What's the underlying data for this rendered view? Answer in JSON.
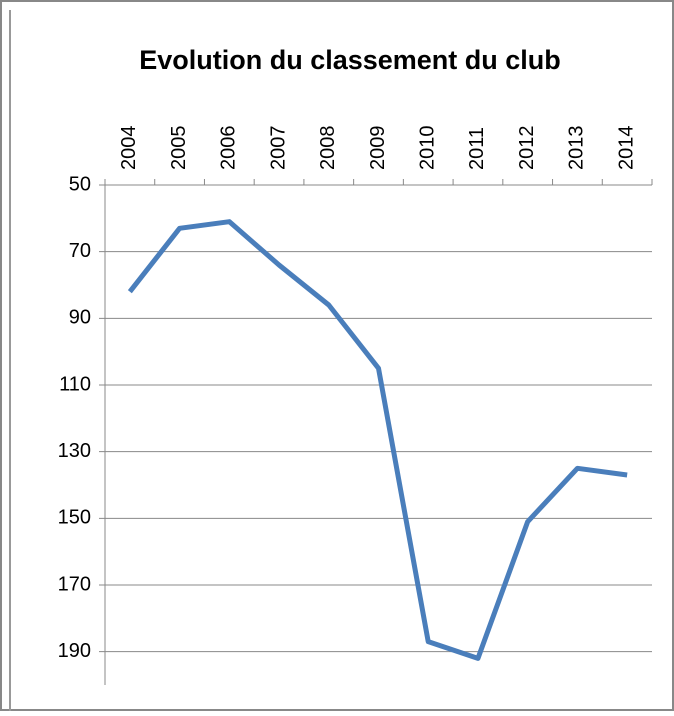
{
  "chart_data": {
    "type": "line",
    "title": "Evolution du classement du club",
    "categories": [
      "2004",
      "2005",
      "2006",
      "2007",
      "2008",
      "2009",
      "2010",
      "2011",
      "2012",
      "2013",
      "2014"
    ],
    "series": [
      {
        "name": "Classement",
        "color": "#4a7ebb",
        "values": [
          82,
          63,
          61,
          74,
          86,
          105,
          187,
          192,
          151,
          135,
          137
        ]
      }
    ],
    "ylim": [
      50,
      200
    ],
    "yticks": [
      50,
      70,
      90,
      110,
      130,
      150,
      170,
      190
    ],
    "y_inverted": true,
    "grid": true
  }
}
